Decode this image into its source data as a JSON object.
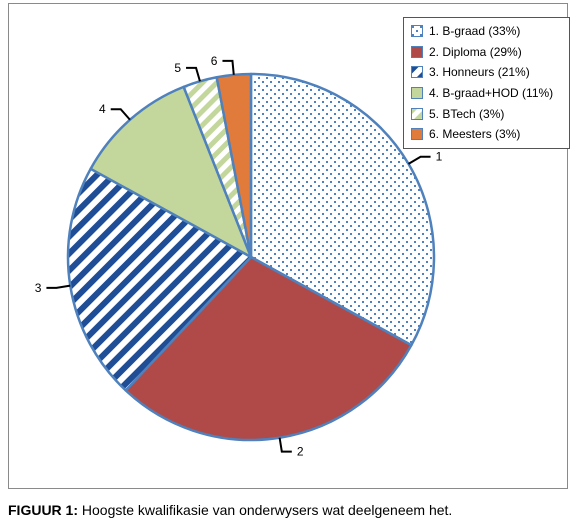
{
  "chart_data": {
    "type": "pie",
    "slices": [
      {
        "label": "1. B-graad (33%)",
        "value": 33,
        "callout": "1",
        "pattern": "dots",
        "color": "#4f81bd"
      },
      {
        "label": "2. Diploma (29%)",
        "value": 29,
        "callout": "2",
        "pattern": "solid",
        "color": "#b04a48"
      },
      {
        "label": "3. Honneurs (21%)",
        "value": 21,
        "callout": "3",
        "pattern": "diagonal-stripes",
        "color": "#1f4e96"
      },
      {
        "label": "4. B-graad+HOD (11%)",
        "value": 11,
        "callout": "4",
        "pattern": "solid",
        "color": "#c3d69b"
      },
      {
        "label": "5. BTech (3%)",
        "value": 3,
        "callout": "5",
        "pattern": "diagonal-stripes",
        "color": "#c3d69b"
      },
      {
        "label": "6. Meesters (3%)",
        "value": 3,
        "callout": "6",
        "pattern": "solid",
        "color": "#e07b3c"
      }
    ],
    "start_angle_deg": 0,
    "direction": "clockwise",
    "legend_position": "top-right",
    "edge_color": "#4f81bd"
  },
  "caption": {
    "label": "FIGUUR 1:",
    "text": " Hoogste kwalifikasie van onderwysers wat deelgeneem het."
  }
}
